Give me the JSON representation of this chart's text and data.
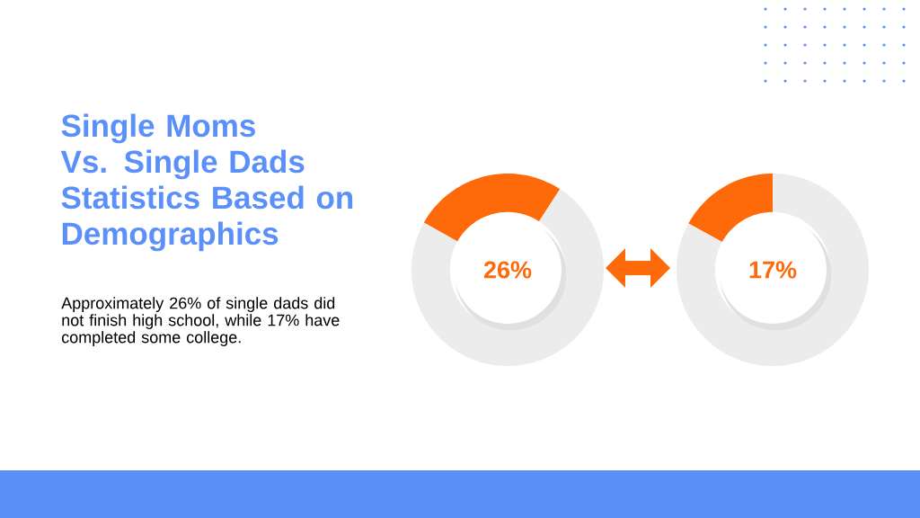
{
  "chart_data": [
    {
      "type": "donut",
      "title": "Single Moms Vs. Single Dads Statistics Based on Demographics",
      "annotations": [
        "26%",
        "Approximately 26% of single dads did not finish high school, while 17% have completed some college."
      ],
      "categories": [
        null,
        null
      ],
      "values": [
        26,
        74
      ],
      "colors": [
        "#fe6a0a",
        "#ececec"
      ]
    },
    {
      "type": "donut",
      "annotations": [
        "17%"
      ],
      "categories": [
        null,
        null
      ],
      "values": [
        17,
        83
      ],
      "colors": [
        "#fe6a0a",
        "#ececec"
      ]
    }
  ]
}
